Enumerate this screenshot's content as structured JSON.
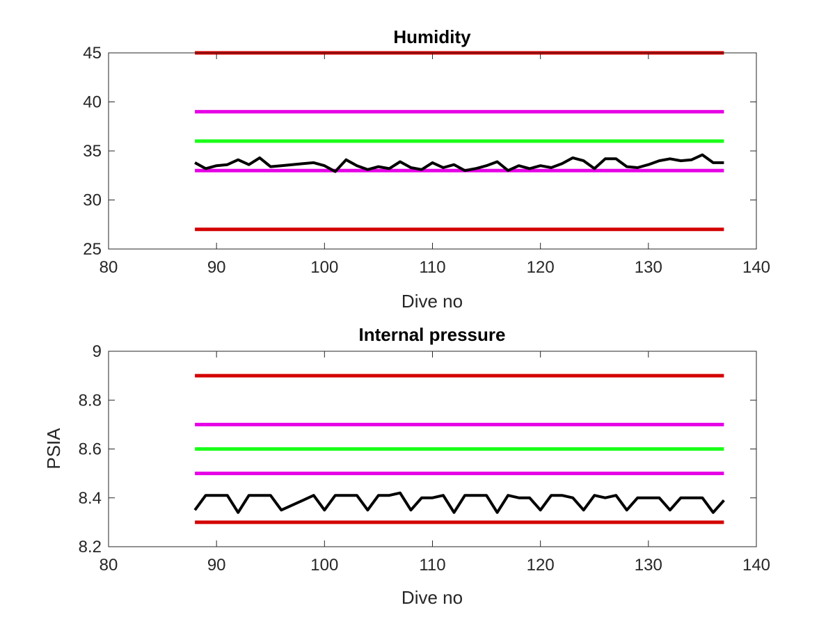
{
  "figure_background": "#ffffff",
  "chart_data": [
    {
      "type": "line",
      "title": "Humidity",
      "xlabel": "Dive no",
      "ylabel": "",
      "xlim": [
        80,
        140
      ],
      "ylim": [
        25,
        45
      ],
      "xticks": [
        80,
        90,
        100,
        110,
        120,
        130,
        140
      ],
      "yticks": [
        25,
        30,
        35,
        40,
        45
      ],
      "xtick_labels": [
        "80",
        "90",
        "100",
        "110",
        "120",
        "130",
        "140"
      ],
      "ytick_labels": [
        "25",
        "30",
        "35",
        "40",
        "45"
      ],
      "grid": false,
      "legend": "none",
      "series": [
        {
          "color": "#d40000",
          "x": [
            88,
            137
          ],
          "values": [
            45,
            45
          ]
        },
        {
          "color": "#e600e6",
          "x": [
            88,
            137
          ],
          "values": [
            39,
            39
          ]
        },
        {
          "color": "#1aff1a",
          "x": [
            88,
            137
          ],
          "values": [
            36,
            36
          ]
        },
        {
          "color": "#e600e6",
          "x": [
            88,
            137
          ],
          "values": [
            33,
            33
          ]
        },
        {
          "color": "#d40000",
          "x": [
            88,
            137
          ],
          "values": [
            27,
            27
          ]
        },
        {
          "color": "#000000",
          "x": [
            88,
            89,
            90,
            91,
            92,
            93,
            94,
            95,
            96,
            97,
            98,
            99,
            100,
            101,
            102,
            103,
            104,
            105,
            106,
            107,
            108,
            109,
            110,
            111,
            112,
            113,
            114,
            115,
            116,
            117,
            118,
            119,
            120,
            121,
            122,
            123,
            124,
            125,
            126,
            127,
            128,
            129,
            130,
            131,
            132,
            133,
            134,
            135,
            136,
            137
          ],
          "values": [
            33.8,
            33.2,
            33.5,
            33.6,
            34.1,
            33.6,
            34.3,
            33.4,
            33.5,
            33.6,
            33.7,
            33.8,
            33.5,
            32.9,
            34.1,
            33.5,
            33.1,
            33.4,
            33.2,
            33.9,
            33.3,
            33.1,
            33.8,
            33.3,
            33.6,
            33.0,
            33.2,
            33.5,
            33.9,
            33.0,
            33.5,
            33.2,
            33.5,
            33.3,
            33.7,
            34.3,
            34.0,
            33.2,
            34.2,
            34.2,
            33.4,
            33.3,
            33.6,
            34.0,
            34.2,
            34.0,
            34.1,
            34.6,
            33.8,
            33.8
          ]
        }
      ]
    },
    {
      "type": "line",
      "title": "Internal pressure",
      "xlabel": "Dive no",
      "ylabel": "PSIA",
      "xlim": [
        80,
        140
      ],
      "ylim": [
        8.2,
        9.0
      ],
      "xticks": [
        80,
        90,
        100,
        110,
        120,
        130,
        140
      ],
      "yticks": [
        8.2,
        8.4,
        8.6,
        8.8,
        9.0
      ],
      "xtick_labels": [
        "80",
        "90",
        "100",
        "110",
        "120",
        "130",
        "140"
      ],
      "ytick_labels": [
        "8.2",
        "8.4",
        "8.6",
        "8.8",
        "9"
      ],
      "grid": false,
      "legend": "none",
      "series": [
        {
          "color": "#d40000",
          "x": [
            88,
            137
          ],
          "values": [
            8.9,
            8.9
          ]
        },
        {
          "color": "#e600e6",
          "x": [
            88,
            137
          ],
          "values": [
            8.7,
            8.7
          ]
        },
        {
          "color": "#1aff1a",
          "x": [
            88,
            137
          ],
          "values": [
            8.6,
            8.6
          ]
        },
        {
          "color": "#e600e6",
          "x": [
            88,
            137
          ],
          "values": [
            8.5,
            8.5
          ]
        },
        {
          "color": "#d40000",
          "x": [
            88,
            137
          ],
          "values": [
            8.3,
            8.3
          ]
        },
        {
          "color": "#000000",
          "x": [
            88,
            89,
            90,
            91,
            92,
            93,
            94,
            95,
            96,
            97,
            98,
            99,
            100,
            101,
            102,
            103,
            104,
            105,
            106,
            107,
            108,
            109,
            110,
            111,
            112,
            113,
            114,
            115,
            116,
            117,
            118,
            119,
            120,
            121,
            122,
            123,
            124,
            125,
            126,
            127,
            128,
            129,
            130,
            131,
            132,
            133,
            134,
            135,
            136,
            137
          ],
          "values": [
            8.35,
            8.41,
            8.41,
            8.41,
            8.34,
            8.41,
            8.41,
            8.41,
            8.35,
            8.37,
            8.39,
            8.41,
            8.35,
            8.41,
            8.41,
            8.41,
            8.35,
            8.41,
            8.41,
            8.42,
            8.35,
            8.4,
            8.4,
            8.41,
            8.34,
            8.41,
            8.41,
            8.41,
            8.34,
            8.41,
            8.4,
            8.4,
            8.35,
            8.41,
            8.41,
            8.4,
            8.35,
            8.41,
            8.4,
            8.41,
            8.35,
            8.4,
            8.4,
            8.4,
            8.35,
            8.4,
            8.4,
            8.4,
            8.34,
            8.39
          ]
        }
      ]
    }
  ]
}
